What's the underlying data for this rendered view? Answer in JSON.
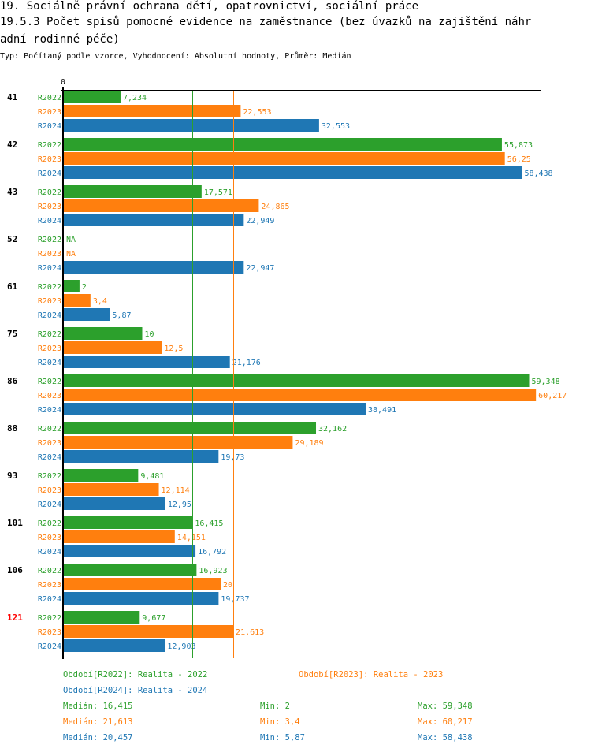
{
  "header": {
    "title_line1": "19. Sociálně právní ochrana dětí, opatrovnictví, sociální práce",
    "title_line2": "19.5.3 Počet spisů pomocné evidence na zaměstnance  (bez úvazků na zajištění náhr",
    "title_line3": "adní rodinné péče)",
    "subtitle": "Typ: Počítaný podle vzorce, Vyhodnocení: Absolutní hodnoty, Průměr: Medián"
  },
  "colors": {
    "R2022": "#2ca02c",
    "R2023": "#ff7f0e",
    "R2024": "#1f77b4",
    "highlight_group": "#ff0000",
    "axis": "#000000"
  },
  "chart_data": {
    "type": "bar",
    "orientation": "horizontal",
    "title": "19.5.3 Počet spisů pomocné evidence na zaměstnance (bez úvazků na zajištění náhradní rodinné péče)",
    "xlabel": "",
    "ylabel": "",
    "x_tick_labels": [
      "0"
    ],
    "xlim": [
      0,
      61
    ],
    "categories": [
      "41",
      "42",
      "43",
      "52",
      "61",
      "75",
      "86",
      "88",
      "93",
      "101",
      "106",
      "121"
    ],
    "highlighted_category": "121",
    "series": [
      {
        "name": "R2022",
        "values": [
          7.234,
          55.873,
          17.571,
          null,
          2,
          10,
          59.348,
          32.162,
          9.481,
          16.415,
          16.923,
          9.677
        ],
        "labels": [
          "7,234",
          "55,873",
          "17,571",
          "NA",
          "2",
          "10",
          "59,348",
          "32,162",
          "9,481",
          "16,415",
          "16,923",
          "9,677"
        ]
      },
      {
        "name": "R2023",
        "values": [
          22.553,
          56.25,
          24.865,
          null,
          3.4,
          12.5,
          60.217,
          29.189,
          12.114,
          14.151,
          20,
          21.613
        ],
        "labels": [
          "22,553",
          "56,25",
          "24,865",
          "NA",
          "3,4",
          "12,5",
          "60,217",
          "29,189",
          "12,114",
          "14,151",
          "20",
          "21,613"
        ]
      },
      {
        "name": "R2024",
        "values": [
          32.553,
          58.438,
          22.949,
          22.947,
          5.87,
          21.176,
          38.491,
          19.73,
          12.95,
          16.792,
          19.737,
          12.903
        ],
        "labels": [
          "32,553",
          "58,438",
          "22,949",
          "22,947",
          "5,87",
          "21,176",
          "38,491",
          "19,73",
          "12,95",
          "16,792",
          "19,737",
          "12,903"
        ]
      }
    ],
    "reference_lines": [
      {
        "series": "R2022",
        "kind": "median",
        "value": 16.415
      },
      {
        "series": "R2024",
        "kind": "median",
        "value": 20.457
      },
      {
        "series": "R2023",
        "kind": "median",
        "value": 21.613
      }
    ],
    "legend": [
      {
        "series": "R2022",
        "text": "Období[R2022]: Realita - 2022"
      },
      {
        "series": "R2023",
        "text": "Období[R2023]: Realita - 2023"
      },
      {
        "series": "R2024",
        "text": "Období[R2024]: Realita - 2024"
      }
    ],
    "stats": [
      {
        "series": "R2022",
        "median": "Medián: 16,415",
        "min": "Min: 2",
        "max": "Max: 59,348"
      },
      {
        "series": "R2023",
        "median": "Medián: 21,613",
        "min": "Min: 3,4",
        "max": "Max: 60,217"
      },
      {
        "series": "R2024",
        "median": "Medián: 20,457",
        "min": "Min: 5,87",
        "max": "Max: 58,438"
      }
    ],
    "legend_position": "bottom"
  }
}
